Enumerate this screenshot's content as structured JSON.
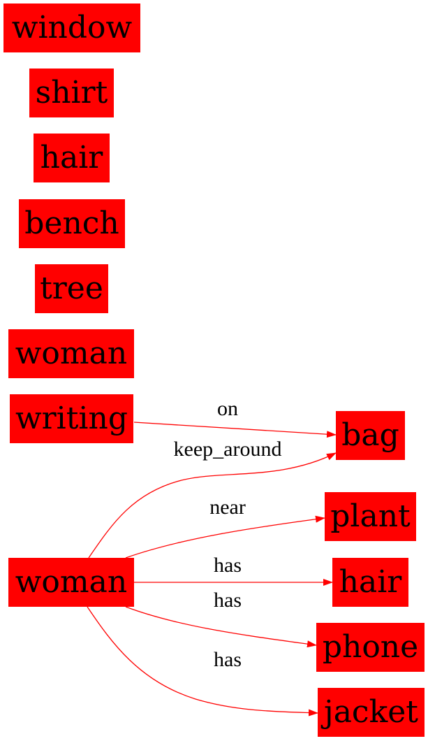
{
  "colors": {
    "node_fill": "#ff0000",
    "edge": "#ff0000",
    "text": "#000000"
  },
  "nodes": {
    "window": "window",
    "shirt": "shirt",
    "hair_top": "hair",
    "bench": "bench",
    "tree": "tree",
    "woman_top": "woman",
    "writing": "writing",
    "woman_main": "woman",
    "bag": "bag",
    "plant": "plant",
    "hair_right": "hair",
    "phone": "phone",
    "jacket": "jacket"
  },
  "edges": {
    "writing_bag": "on",
    "woman_bag": "keep_around",
    "woman_plant": "near",
    "woman_hair": "has",
    "woman_phone": "has",
    "woman_jacket": "has"
  }
}
